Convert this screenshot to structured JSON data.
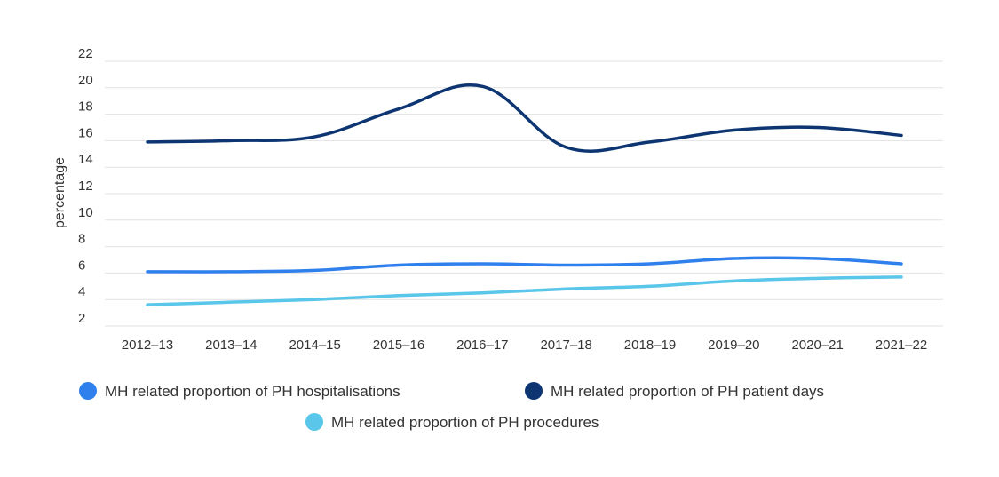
{
  "chart_data": {
    "type": "line",
    "ylabel": "percentage",
    "xlabel": "",
    "ylim": [
      2,
      22
    ],
    "yticks": [
      2,
      4,
      6,
      8,
      10,
      12,
      14,
      16,
      18,
      20,
      22
    ],
    "categories": [
      "2012–13",
      "2013–14",
      "2014–15",
      "2015–16",
      "2016–17",
      "2017–18",
      "2018–19",
      "2019–20",
      "2020–21",
      "2021–22"
    ],
    "grid": true,
    "legend_position": "bottom",
    "series": [
      {
        "name": "MH related proportion of PH hospitalisations",
        "color": "#2f80ed",
        "values": [
          6.1,
          6.1,
          6.2,
          6.6,
          6.7,
          6.6,
          6.7,
          7.1,
          7.1,
          6.7
        ]
      },
      {
        "name": "MH related proportion of PH patient days",
        "color": "#0d3572",
        "values": [
          15.9,
          16.0,
          16.3,
          18.4,
          20.1,
          15.5,
          15.9,
          16.8,
          17.0,
          16.4
        ]
      },
      {
        "name": "MH related proportion of PH procedures",
        "color": "#59c6ea",
        "values": [
          3.6,
          3.8,
          4.0,
          4.3,
          4.5,
          4.8,
          5.0,
          5.4,
          5.6,
          5.7
        ]
      }
    ]
  }
}
